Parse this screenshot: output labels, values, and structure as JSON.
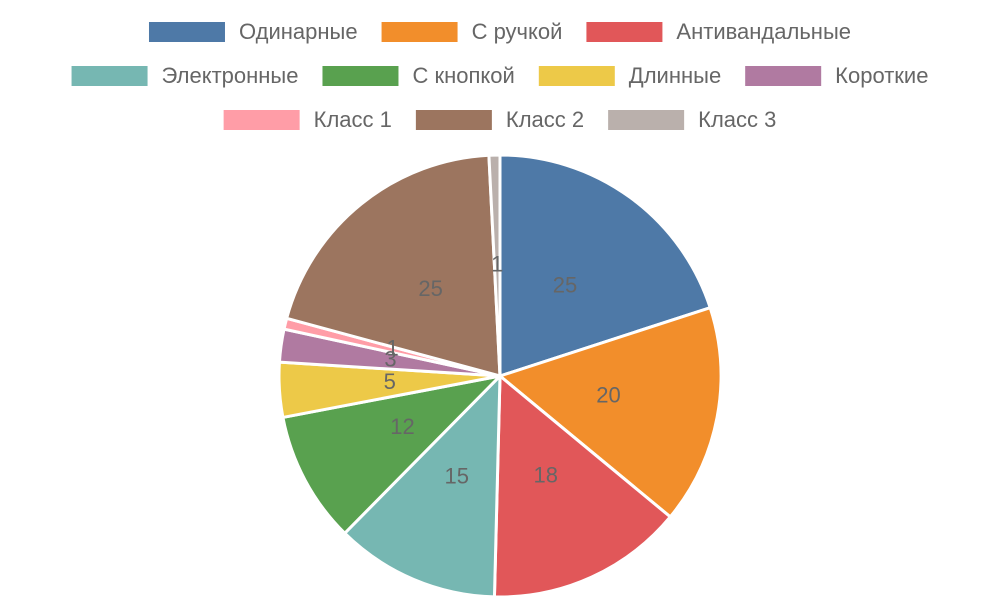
{
  "chart_data": {
    "type": "pie",
    "categories": [
      "Одинарные",
      "С ручкой",
      "Антивандальные",
      "Электронные",
      "С кнопкой",
      "Длинные",
      "Короткие",
      "Класс 1",
      "Класс 2",
      "Класс 3"
    ],
    "values": [
      25,
      20,
      18,
      15,
      12,
      5,
      3,
      1,
      25,
      1
    ],
    "colors": [
      "#4e79a7",
      "#f28e2b",
      "#e15759",
      "#76b7b2",
      "#59a14f",
      "#edc948",
      "#b07aa1",
      "#ff9da7",
      "#9c755f",
      "#bab0ac"
    ]
  }
}
